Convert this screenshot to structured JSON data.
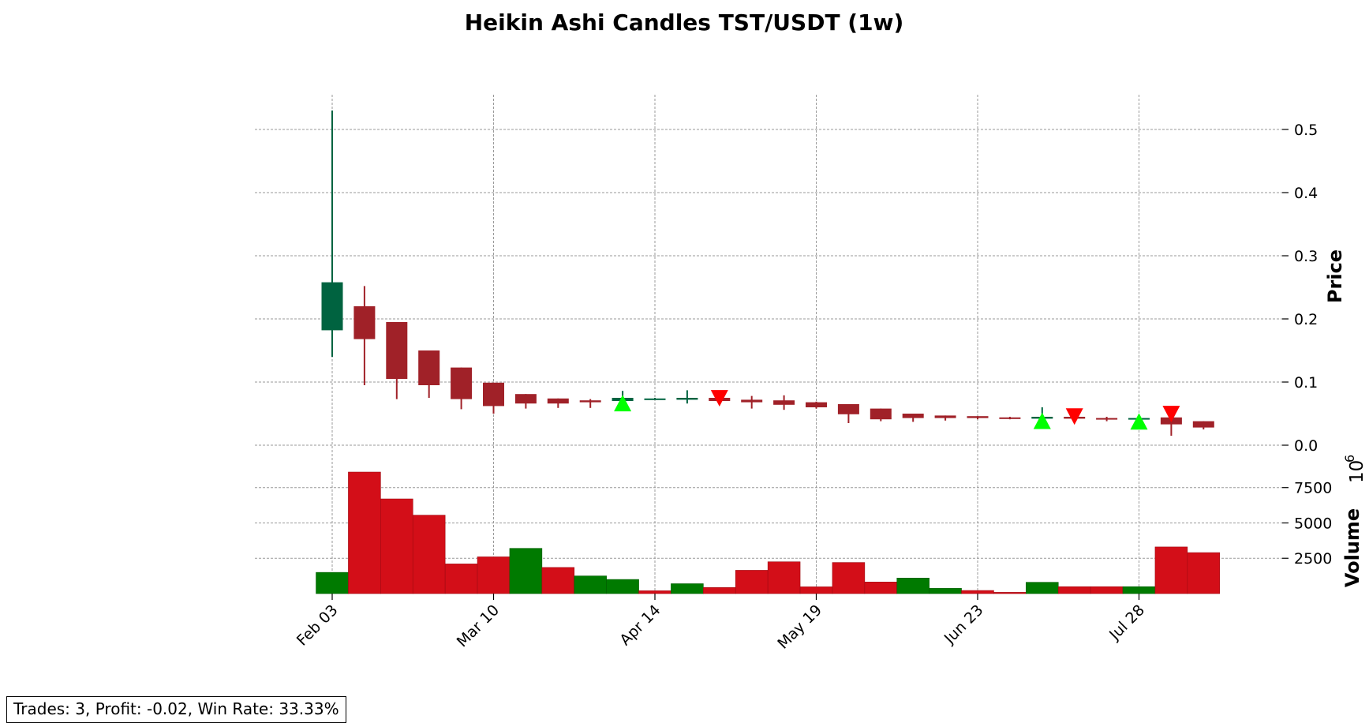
{
  "chart_data": {
    "type": "candlestick",
    "title": "Heikin Ashi Candles TST/USDT (1w)",
    "price_panel": {
      "ylabel": "Price",
      "ylim": [
        0,
        0.55
      ],
      "yticks": [
        "0.0",
        "0.1",
        "0.2",
        "0.3",
        "0.4",
        "0.5"
      ],
      "candles": [
        {
          "date": "2024-02-03",
          "open": 0.182,
          "high": 0.53,
          "low": 0.14,
          "close": 0.258,
          "dir": "up"
        },
        {
          "date": "2024-02-10",
          "open": 0.22,
          "high": 0.252,
          "low": 0.095,
          "close": 0.168,
          "dir": "down"
        },
        {
          "date": "2024-02-17",
          "open": 0.195,
          "high": 0.195,
          "low": 0.073,
          "close": 0.105,
          "dir": "down"
        },
        {
          "date": "2024-02-24",
          "open": 0.15,
          "high": 0.15,
          "low": 0.075,
          "close": 0.095,
          "dir": "down"
        },
        {
          "date": "2024-03-03",
          "open": 0.123,
          "high": 0.123,
          "low": 0.057,
          "close": 0.073,
          "dir": "down"
        },
        {
          "date": "2024-03-10",
          "open": 0.099,
          "high": 0.099,
          "low": 0.05,
          "close": 0.062,
          "dir": "down"
        },
        {
          "date": "2024-03-17",
          "open": 0.081,
          "high": 0.081,
          "low": 0.058,
          "close": 0.066,
          "dir": "down"
        },
        {
          "date": "2024-03-24",
          "open": 0.074,
          "high": 0.074,
          "low": 0.059,
          "close": 0.066,
          "dir": "down"
        },
        {
          "date": "2024-03-31",
          "open": 0.071,
          "high": 0.073,
          "low": 0.059,
          "close": 0.068,
          "dir": "down"
        },
        {
          "date": "2024-04-07",
          "open": 0.07,
          "high": 0.086,
          "low": 0.068,
          "close": 0.075,
          "dir": "up"
        },
        {
          "date": "2024-04-14",
          "open": 0.073,
          "high": 0.075,
          "low": 0.072,
          "close": 0.074,
          "dir": "up"
        },
        {
          "date": "2024-04-21",
          "open": 0.072,
          "high": 0.087,
          "low": 0.066,
          "close": 0.075,
          "dir": "up"
        },
        {
          "date": "2024-04-28",
          "open": 0.075,
          "high": 0.083,
          "low": 0.066,
          "close": 0.07,
          "dir": "down"
        },
        {
          "date": "2024-05-05",
          "open": 0.072,
          "high": 0.078,
          "low": 0.058,
          "close": 0.068,
          "dir": "down"
        },
        {
          "date": "2024-05-12",
          "open": 0.071,
          "high": 0.079,
          "low": 0.056,
          "close": 0.064,
          "dir": "down"
        },
        {
          "date": "2024-05-19",
          "open": 0.068,
          "high": 0.069,
          "low": 0.058,
          "close": 0.06,
          "dir": "down"
        },
        {
          "date": "2024-05-26",
          "open": 0.065,
          "high": 0.065,
          "low": 0.035,
          "close": 0.049,
          "dir": "down"
        },
        {
          "date": "2024-06-02",
          "open": 0.058,
          "high": 0.058,
          "low": 0.038,
          "close": 0.041,
          "dir": "down"
        },
        {
          "date": "2024-06-09",
          "open": 0.05,
          "high": 0.05,
          "low": 0.037,
          "close": 0.043,
          "dir": "down"
        },
        {
          "date": "2024-06-16",
          "open": 0.047,
          "high": 0.047,
          "low": 0.039,
          "close": 0.043,
          "dir": "down"
        },
        {
          "date": "2024-06-23",
          "open": 0.046,
          "high": 0.046,
          "low": 0.041,
          "close": 0.043,
          "dir": "down"
        },
        {
          "date": "2024-06-30",
          "open": 0.044,
          "high": 0.045,
          "low": 0.041,
          "close": 0.042,
          "dir": "down"
        },
        {
          "date": "2024-07-07",
          "open": 0.042,
          "high": 0.06,
          "low": 0.041,
          "close": 0.045,
          "dir": "up"
        },
        {
          "date": "2024-07-14",
          "open": 0.045,
          "high": 0.053,
          "low": 0.041,
          "close": 0.042,
          "dir": "down"
        },
        {
          "date": "2024-07-21",
          "open": 0.043,
          "high": 0.045,
          "low": 0.038,
          "close": 0.042,
          "dir": "down"
        },
        {
          "date": "2024-07-28",
          "open": 0.042,
          "high": 0.048,
          "low": 0.039,
          "close": 0.043,
          "dir": "up"
        },
        {
          "date": "2024-08-04",
          "open": 0.044,
          "high": 0.047,
          "low": 0.015,
          "close": 0.033,
          "dir": "down"
        },
        {
          "date": "2024-08-11",
          "open": 0.038,
          "high": 0.038,
          "low": 0.025,
          "close": 0.028,
          "dir": "down"
        }
      ],
      "buy_signals": [
        {
          "date": "2024-04-07",
          "price": 0.066
        },
        {
          "date": "2024-07-07",
          "price": 0.038
        },
        {
          "date": "2024-07-28",
          "price": 0.037
        }
      ],
      "sell_signals": [
        {
          "date": "2024-04-28",
          "price": 0.075
        },
        {
          "date": "2024-07-14",
          "price": 0.046
        },
        {
          "date": "2024-08-04",
          "price": 0.05
        }
      ]
    },
    "volume_panel": {
      "ylabel": "Volume",
      "exponent_label": "10",
      "exponent_power": "6",
      "ylim": [
        0,
        10500
      ],
      "yticks": [
        "2500",
        "5000",
        "7500"
      ],
      "volumes": [
        1500,
        8600,
        6700,
        5550,
        2100,
        2600,
        3200,
        1850,
        1250,
        1000,
        200,
        700,
        430,
        1650,
        2250,
        480,
        2200,
        820,
        1100,
        370,
        220,
        90,
        800,
        490,
        490,
        490,
        3300,
        2900
      ],
      "dirs": [
        "up",
        "down",
        "down",
        "down",
        "down",
        "down",
        "up",
        "down",
        "up",
        "up",
        "down",
        "up",
        "down",
        "down",
        "down",
        "down",
        "down",
        "down",
        "up",
        "up",
        "down",
        "down",
        "up",
        "down",
        "down",
        "up",
        "down",
        "down"
      ]
    },
    "x_axis": {
      "ticks": [
        "Feb 03",
        "Mar 10",
        "Apr 14",
        "May 19",
        "Jun 23",
        "Jul 28"
      ],
      "tick_indices": [
        0,
        5,
        10,
        15,
        20,
        25
      ]
    },
    "grid": true,
    "colors": {
      "candle_up": "#006340",
      "candle_down": "#a02128",
      "volume_up": "#007a00",
      "volume_down": "#d30e18",
      "buy_marker": "#00ff00",
      "sell_marker": "#ff0000"
    }
  },
  "stats": {
    "text": "Trades: 3, Profit: -0.02, Win Rate: 33.33%"
  }
}
